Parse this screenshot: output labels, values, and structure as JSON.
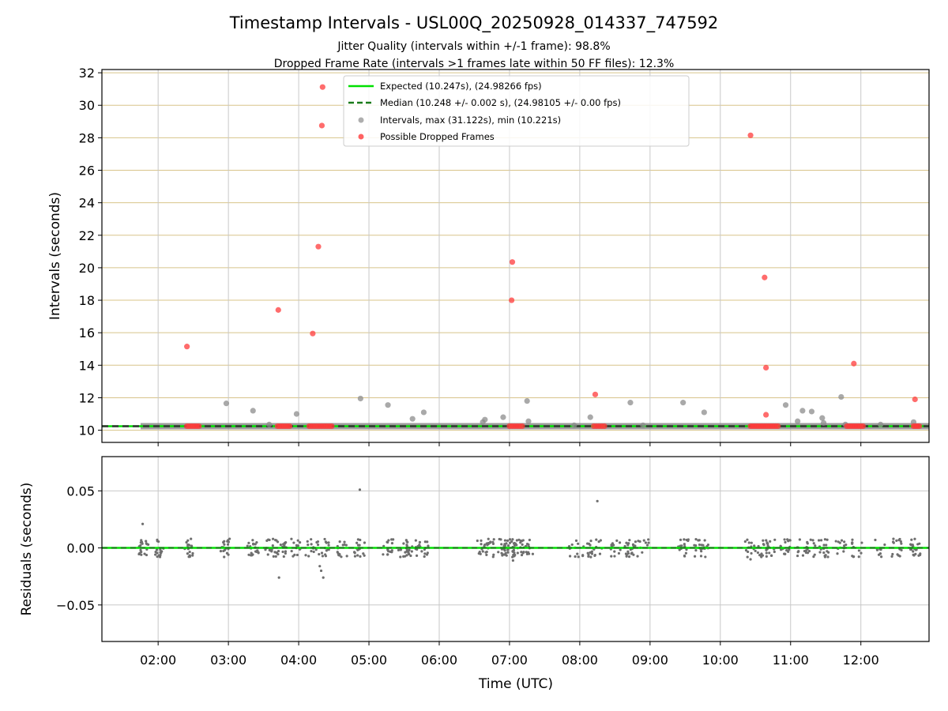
{
  "title": "Timestamp Intervals - USL00Q_20250928_014337_747592",
  "subtitle_jitter": "Jitter Quality (intervals within +/-1 frame): 98.8%",
  "subtitle_dropped": "Dropped Frame Rate (intervals >1 frames late within 50 FF files): 12.3%",
  "colors": {
    "expected": "#00e000",
    "median": "#1a7a1a",
    "intervals": "#8c8c8c",
    "dropped": "#ff3b3b",
    "hgrid_top": "#d8c48a",
    "grid": "#c8c8c8"
  },
  "chart_data": [
    {
      "type": "scatter",
      "panel": "intervals",
      "ylabel": "Intervals (seconds)",
      "xlabel": "",
      "x_unit": "hours UTC",
      "xlim": [
        1.2,
        12.97
      ],
      "ylim": [
        9.25,
        32.2
      ],
      "yticks": [
        10,
        12,
        14,
        16,
        18,
        20,
        22,
        24,
        26,
        28,
        30,
        32
      ],
      "ytick_labels": [
        "10",
        "12",
        "14",
        "16",
        "18",
        "20",
        "22",
        "24",
        "26",
        "28",
        "30",
        "32"
      ],
      "xticks": [
        2,
        3,
        4,
        5,
        6,
        7,
        8,
        9,
        10,
        11,
        12
      ],
      "legend": {
        "placement": "top-center",
        "entries": [
          "Expected (10.247s), (24.98266 fps)",
          "Median (10.248 +/- 0.002 s), (24.98105 +/- 0.00 fps)",
          "Intervals, max (31.122s), min (10.221s)",
          "Possible Dropped Frames"
        ]
      },
      "expected_value": 10.247,
      "median_value": 10.248,
      "base_interval_range": [
        1.75,
        12.97
      ],
      "interval_outliers": [
        {
          "x": 2.97,
          "y": 11.65
        },
        {
          "x": 3.35,
          "y": 11.2
        },
        {
          "x": 3.58,
          "y": 10.35
        },
        {
          "x": 3.97,
          "y": 11.0
        },
        {
          "x": 4.88,
          "y": 11.95
        },
        {
          "x": 5.27,
          "y": 11.55
        },
        {
          "x": 5.62,
          "y": 10.7
        },
        {
          "x": 5.78,
          "y": 11.1
        },
        {
          "x": 6.62,
          "y": 10.5
        },
        {
          "x": 6.65,
          "y": 10.65
        },
        {
          "x": 6.91,
          "y": 10.8
        },
        {
          "x": 7.25,
          "y": 11.8
        },
        {
          "x": 7.27,
          "y": 10.55
        },
        {
          "x": 7.92,
          "y": 10.3
        },
        {
          "x": 8.15,
          "y": 10.8
        },
        {
          "x": 8.72,
          "y": 11.7
        },
        {
          "x": 8.9,
          "y": 10.3
        },
        {
          "x": 9.47,
          "y": 11.7
        },
        {
          "x": 9.77,
          "y": 11.1
        },
        {
          "x": 10.93,
          "y": 11.55
        },
        {
          "x": 11.1,
          "y": 10.55
        },
        {
          "x": 11.17,
          "y": 11.2
        },
        {
          "x": 11.3,
          "y": 11.15
        },
        {
          "x": 11.45,
          "y": 10.75
        },
        {
          "x": 11.47,
          "y": 10.45
        },
        {
          "x": 11.72,
          "y": 12.05
        },
        {
          "x": 11.78,
          "y": 10.35
        },
        {
          "x": 12.28,
          "y": 10.35
        },
        {
          "x": 12.75,
          "y": 10.5
        }
      ],
      "dropped_frames": [
        {
          "x": 2.41,
          "y": 15.15
        },
        {
          "x": 3.71,
          "y": 17.4
        },
        {
          "x": 4.2,
          "y": 15.95
        },
        {
          "x": 4.28,
          "y": 21.3
        },
        {
          "x": 4.33,
          "y": 28.75
        },
        {
          "x": 4.34,
          "y": 31.12
        },
        {
          "x": 7.03,
          "y": 18.0
        },
        {
          "x": 7.04,
          "y": 20.35
        },
        {
          "x": 8.22,
          "y": 12.2
        },
        {
          "x": 10.43,
          "y": 28.15
        },
        {
          "x": 10.63,
          "y": 19.4
        },
        {
          "x": 10.65,
          "y": 13.85
        },
        {
          "x": 10.65,
          "y": 10.95
        },
        {
          "x": 11.9,
          "y": 14.1
        },
        {
          "x": 12.77,
          "y": 11.9
        }
      ],
      "dropped_clusters": [
        {
          "from": 2.41,
          "to": 2.58,
          "y": 10.25
        },
        {
          "from": 3.7,
          "to": 3.87,
          "y": 10.25
        },
        {
          "from": 4.15,
          "to": 4.47,
          "y": 10.25
        },
        {
          "from": 7.0,
          "to": 7.18,
          "y": 10.25
        },
        {
          "from": 8.2,
          "to": 8.35,
          "y": 10.25
        },
        {
          "from": 10.43,
          "to": 10.82,
          "y": 10.25
        },
        {
          "from": 11.8,
          "to": 12.03,
          "y": 10.25
        },
        {
          "from": 12.75,
          "to": 12.83,
          "y": 10.25
        }
      ]
    },
    {
      "type": "scatter",
      "panel": "residuals",
      "ylabel": "Residuals (seconds)",
      "xlabel": "Time (UTC)",
      "xlim": [
        1.2,
        12.97
      ],
      "ylim": [
        -0.082,
        0.08
      ],
      "yticks": [
        0.05,
        0.0,
        -0.05
      ],
      "ytick_labels": [
        "0.05",
        "0.00",
        "−0.05"
      ],
      "xticks": [
        2,
        3,
        4,
        5,
        6,
        7,
        8,
        9,
        10,
        11,
        12
      ],
      "xtick_labels": [
        "02:00",
        "03:00",
        "04:00",
        "05:00",
        "06:00",
        "07:00",
        "08:00",
        "09:00",
        "10:00",
        "11:00",
        "12:00"
      ],
      "zero_line": 0.0,
      "clusters": [
        1.78,
        2.0,
        2.42,
        2.97,
        3.35,
        3.6,
        3.75,
        3.97,
        4.18,
        4.35,
        4.62,
        4.87,
        5.27,
        5.5,
        5.62,
        5.78,
        6.62,
        6.7,
        6.91,
        7.0,
        7.12,
        7.27,
        7.92,
        8.12,
        8.25,
        8.5,
        8.72,
        8.9,
        9.47,
        9.7,
        9.77,
        10.43,
        10.6,
        10.7,
        10.93,
        11.17,
        11.3,
        11.47,
        11.72,
        11.95,
        12.28,
        12.5,
        12.77
      ],
      "outliers": [
        {
          "x": 1.78,
          "y": 0.021
        },
        {
          "x": 1.76,
          "y": -0.006
        },
        {
          "x": 3.72,
          "y": -0.026
        },
        {
          "x": 4.3,
          "y": -0.016
        },
        {
          "x": 4.32,
          "y": -0.02
        },
        {
          "x": 4.35,
          "y": -0.026
        },
        {
          "x": 4.87,
          "y": 0.051
        },
        {
          "x": 8.25,
          "y": 0.041
        },
        {
          "x": 10.43,
          "y": -0.01
        },
        {
          "x": 7.05,
          "y": -0.011
        }
      ]
    }
  ]
}
